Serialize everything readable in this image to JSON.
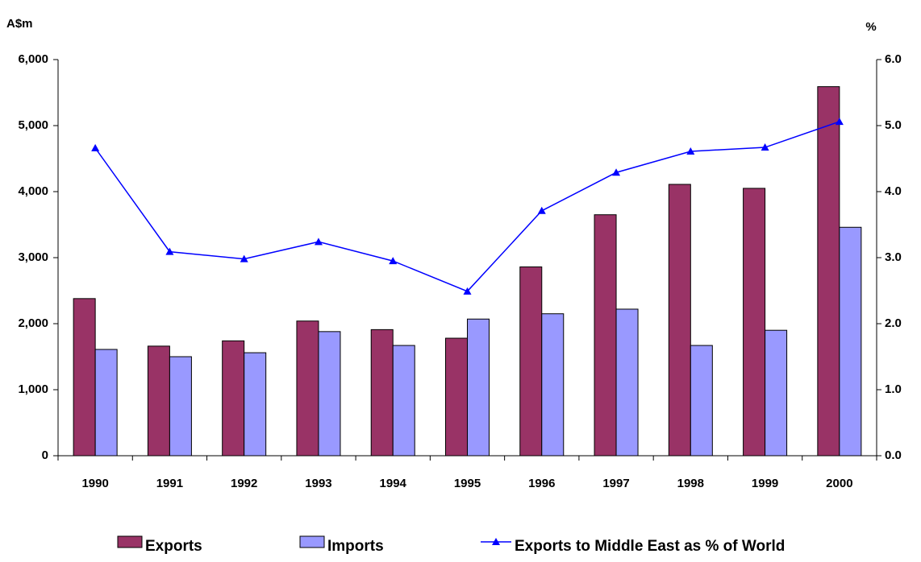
{
  "chart_data": {
    "type": "bar-line",
    "y_label": "A$m",
    "y2_label": "%",
    "categories": [
      "1990",
      "1991",
      "1992",
      "1993",
      "1994",
      "1995",
      "1996",
      "1997",
      "1998",
      "1999",
      "2000"
    ],
    "series": [
      {
        "name": "Exports",
        "type": "bar",
        "color": "#993366",
        "values": [
          2380,
          1660,
          1740,
          2040,
          1910,
          1780,
          2860,
          3650,
          4110,
          4050,
          5590
        ]
      },
      {
        "name": "Imports",
        "type": "bar",
        "color": "#9999ff",
        "values": [
          1610,
          1500,
          1560,
          1880,
          1670,
          2070,
          2150,
          2220,
          1670,
          1900,
          3460
        ]
      },
      {
        "name": "Exports to Middle East as % of World",
        "type": "line",
        "axis": "y2",
        "color": "#0000ff",
        "values": [
          4.66,
          3.09,
          2.98,
          3.24,
          2.95,
          2.49,
          3.71,
          4.29,
          4.61,
          4.67,
          5.06
        ]
      }
    ],
    "ylim": [
      0,
      6000
    ],
    "yticks": [
      0,
      {
        "value": 1000,
        "label": "1,000"
      },
      {
        "value": 2000,
        "label": "2,000"
      },
      {
        "value": 3000,
        "label": "3,000"
      },
      {
        "value": 4000,
        "label": "4,000"
      },
      {
        "value": 5000,
        "label": "5,000"
      },
      {
        "value": 6000,
        "label": "6,000"
      }
    ],
    "y2lim": [
      0,
      6
    ],
    "y2ticks": [
      {
        "value": 0,
        "label": "0.0"
      },
      {
        "value": 1,
        "label": "1.0"
      },
      {
        "value": 2,
        "label": "2.0"
      },
      {
        "value": 3,
        "label": "3.0"
      },
      {
        "value": 4,
        "label": "4.0"
      },
      {
        "value": 5,
        "label": "5.0"
      },
      {
        "value": 6,
        "label": "6.0"
      }
    ],
    "legend": "bottom"
  }
}
